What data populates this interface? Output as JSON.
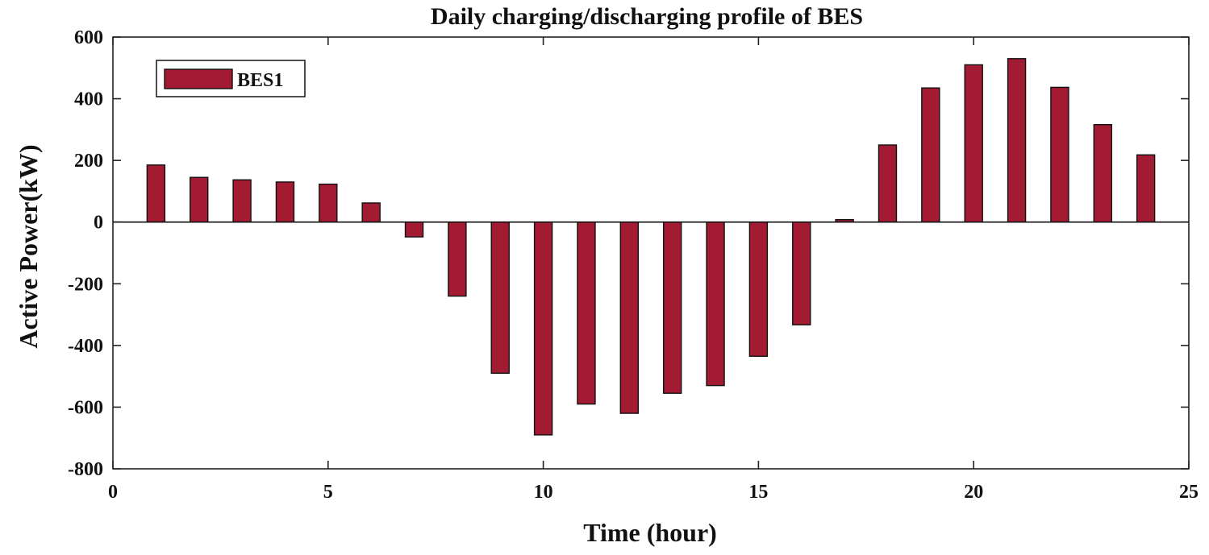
{
  "chart_data": {
    "type": "bar",
    "title": "Daily charging/discharging profile of BES",
    "xlabel": "Time (hour)",
    "ylabel": "Active Power(kW)",
    "xlim": [
      0,
      25
    ],
    "ylim": [
      -800,
      600
    ],
    "xticks": [
      0,
      5,
      10,
      15,
      20,
      25
    ],
    "yticks": [
      -800,
      -600,
      -400,
      -200,
      0,
      200,
      400,
      600
    ],
    "grid": false,
    "legend_position": "top-left",
    "x": [
      1,
      2,
      3,
      4,
      5,
      6,
      7,
      8,
      9,
      10,
      11,
      12,
      13,
      14,
      15,
      16,
      17,
      18,
      19,
      20,
      21,
      22,
      23,
      24
    ],
    "series": [
      {
        "name": "BES1",
        "color": "#a31b32",
        "values": [
          185,
          145,
          137,
          130,
          123,
          62,
          -48,
          -240,
          -490,
          -690,
          -590,
          -620,
          -555,
          -530,
          -435,
          -333,
          8,
          250,
          435,
          510,
          530,
          437,
          316,
          218
        ]
      }
    ]
  }
}
